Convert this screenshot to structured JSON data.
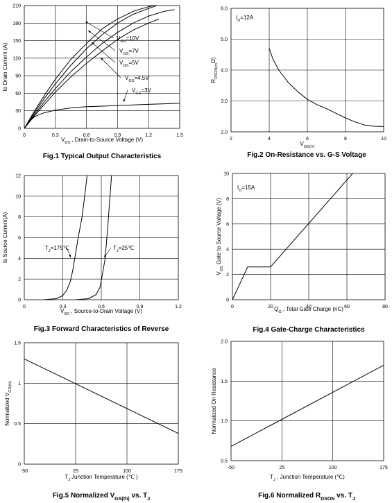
{
  "figures": [
    {
      "id": "fig1",
      "caption": "Fig.1 Typical Output Characteristics",
      "xlabel": "V_DS , Drain-to-Source Voltage (V)",
      "ylabel": "Io Drain Current (A)",
      "annotations": [
        "V_GS=10V",
        "V_GS=7V",
        "V_GS=5V",
        "V_GS=4.5V",
        "V_GS=3V"
      ]
    },
    {
      "id": "fig2",
      "caption": "Fig.2 On-Resistance vs. G-S Voltage",
      "xlabel": "V_GS(V)",
      "ylabel": "R_DSON(mΩ)",
      "annotations": [
        "I_D=12A"
      ]
    },
    {
      "id": "fig3",
      "caption": "Fig.3 Forward Characteristics of Reverse",
      "xlabel": "V_SD , Source-to-Drain Voltage (V)",
      "ylabel": "Is Source Current(A)",
      "annotations": [
        "T_J=175℃",
        "T_J=25℃"
      ]
    },
    {
      "id": "fig4",
      "caption": "Fig.4 Gate-Charge Characteristics",
      "xlabel": "Q_G , Total Gate Charge (nC)",
      "ylabel": "V_GS Gate to Source Voltage (V)",
      "annotations": [
        "I_D=15A"
      ]
    },
    {
      "id": "fig5",
      "caption": "Fig.5 Normalized V_GS(th) vs. T_J",
      "xlabel": "T_J Junction Temperature (℃ )",
      "ylabel": "Normalized V_GS(th)",
      "annotations": []
    },
    {
      "id": "fig6",
      "caption": "Fig.6 Normalized R_DSON vs. T_J",
      "xlabel": "T_J , Junction Temperature (℃)",
      "ylabel": "Normalized On Resistance",
      "annotations": []
    }
  ],
  "chart_data": [
    {
      "type": "line",
      "title": "Fig.1 Typical Output Characteristics",
      "xlabel": "V_DS , Drain-to-Source Voltage (V)",
      "ylabel": "Io Drain Current (A)",
      "xlim": [
        0,
        1.5
      ],
      "ylim": [
        0,
        210
      ],
      "xticks": [
        "0",
        "0.3",
        "0.6",
        "0.9",
        "1.2",
        "1.5"
      ],
      "yticks": [
        "0",
        "30",
        "60",
        "90",
        "120",
        "150",
        "180",
        "210"
      ],
      "grid": true,
      "series": [
        {
          "name": "V_GS=10V",
          "x": [
            0,
            0.1,
            0.2,
            0.3,
            0.45,
            0.6,
            0.75,
            0.9,
            1.05,
            1.2,
            1.25
          ],
          "y": [
            0,
            30,
            58,
            84,
            118,
            145,
            170,
            187,
            200,
            208,
            210
          ]
        },
        {
          "name": "V_GS=7V",
          "x": [
            0,
            0.1,
            0.2,
            0.3,
            0.45,
            0.6,
            0.75,
            0.9,
            1.05,
            1.2,
            1.28
          ],
          "y": [
            0,
            27,
            53,
            76,
            108,
            136,
            160,
            180,
            195,
            205,
            210
          ]
        },
        {
          "name": "V_GS=5V",
          "x": [
            0,
            0.1,
            0.2,
            0.3,
            0.45,
            0.6,
            0.75,
            0.9,
            1.05,
            1.2,
            1.35,
            1.45
          ],
          "y": [
            0,
            24,
            47,
            68,
            97,
            122,
            145,
            164,
            180,
            192,
            200,
            203
          ]
        },
        {
          "name": "V_GS=4.5V",
          "x": [
            0,
            0.1,
            0.2,
            0.3,
            0.45,
            0.6,
            0.75,
            0.9,
            1.05,
            1.2,
            1.3
          ],
          "y": [
            0,
            22,
            42,
            62,
            88,
            111,
            132,
            152,
            168,
            180,
            187
          ]
        },
        {
          "name": "V_GS=3V",
          "x": [
            0,
            0.05,
            0.1,
            0.15,
            0.2,
            0.3,
            0.45,
            0.6,
            0.75,
            0.9,
            1.2,
            1.5
          ],
          "y": [
            0,
            12,
            20,
            24,
            27,
            31,
            35,
            37,
            38,
            39,
            41,
            43
          ]
        }
      ]
    },
    {
      "type": "line",
      "title": "Fig.2 On-Resistance vs. G-S Voltage",
      "xlabel": "V_GS(V)",
      "ylabel": "R_DSON(mΩ)",
      "xlim": [
        2,
        10
      ],
      "ylim": [
        2.0,
        6.0
      ],
      "xticks": [
        "2",
        "4",
        "6",
        "8",
        "10"
      ],
      "yticks": [
        "2.0",
        "3.0",
        "4.0",
        "5.0",
        "6.0"
      ],
      "grid": true,
      "series": [
        {
          "name": "I_D=12A",
          "x": [
            4,
            4.2,
            4.5,
            5,
            5.5,
            6,
            6.5,
            7,
            7.5,
            8,
            8.5,
            9,
            9.5,
            10
          ],
          "y": [
            4.7,
            4.35,
            4.0,
            3.6,
            3.3,
            3.05,
            2.88,
            2.75,
            2.6,
            2.45,
            2.32,
            2.22,
            2.18,
            2.17
          ]
        }
      ]
    },
    {
      "type": "line",
      "title": "Fig.3 Forward Characteristics of Reverse",
      "xlabel": "V_SD , Source-to-Drain Voltage (V)",
      "ylabel": "Is Source Current(A)",
      "xlim": [
        0,
        1.2
      ],
      "ylim": [
        0,
        12
      ],
      "xticks": [
        "0",
        "0.3",
        "0.6",
        "0.9",
        "1.2"
      ],
      "yticks": [
        "0",
        "2",
        "4",
        "6",
        "8",
        "10",
        "12"
      ],
      "grid": true,
      "series": [
        {
          "name": "T_J=175℃",
          "x": [
            0.15,
            0.25,
            0.3,
            0.33,
            0.36,
            0.38,
            0.4,
            0.42,
            0.45,
            0.47,
            0.49
          ],
          "y": [
            0,
            0.1,
            0.4,
            0.9,
            1.8,
            3,
            4.5,
            6,
            8,
            10,
            12
          ]
        },
        {
          "name": "T_J=25℃",
          "x": [
            0.4,
            0.5,
            0.56,
            0.59,
            0.61,
            0.63,
            0.64,
            0.65,
            0.66,
            0.67,
            0.68
          ],
          "y": [
            0,
            0.1,
            0.5,
            1.2,
            2.5,
            4,
            5.5,
            7,
            8.7,
            10.3,
            12
          ]
        }
      ]
    },
    {
      "type": "line",
      "title": "Fig.4 Gate-Charge Characteristics",
      "xlabel": "Q_G , Total Gate Charge (nC)",
      "ylabel": "V_GS Gate to Source Voltage (V)",
      "xlim": [
        0,
        80
      ],
      "ylim": [
        0,
        10
      ],
      "xticks": [
        "0",
        "20",
        "40",
        "60",
        "80"
      ],
      "yticks": [
        "0",
        "2",
        "4",
        "6",
        "8",
        "10"
      ],
      "grid": true,
      "series": [
        {
          "name": "I_D=15A",
          "x": [
            0,
            8,
            20,
            63
          ],
          "y": [
            0,
            2.6,
            2.6,
            10
          ]
        }
      ]
    },
    {
      "type": "line",
      "title": "Fig.5 Normalized V_GS(th) vs. T_J",
      "xlabel": "T_J Junction Temperature (℃ )",
      "ylabel": "Normalized V_GS(th)",
      "xlim": [
        -50,
        175
      ],
      "ylim": [
        0,
        1.5
      ],
      "xticks": [
        "-50",
        "25",
        "100",
        "175"
      ],
      "yticks": [
        "0",
        "0.5",
        "1",
        "1.5"
      ],
      "grid": true,
      "series": [
        {
          "x": [
            -50,
            175
          ],
          "y": [
            1.3,
            0.38
          ]
        }
      ]
    },
    {
      "type": "line",
      "title": "Fig.6 Normalized R_DSON vs. T_J",
      "xlabel": "T_J , Junction Temperature (℃)",
      "ylabel": "Normalized On Resistance",
      "xlim": [
        -50,
        175
      ],
      "ylim": [
        0.5,
        2.0
      ],
      "xticks": [
        "-50",
        "25",
        "100",
        "175"
      ],
      "yticks": [
        "0.5",
        "1.0",
        "1.5",
        "2.0"
      ],
      "grid": true,
      "series": [
        {
          "x": [
            -50,
            175
          ],
          "y": [
            0.68,
            1.7
          ]
        }
      ]
    }
  ]
}
